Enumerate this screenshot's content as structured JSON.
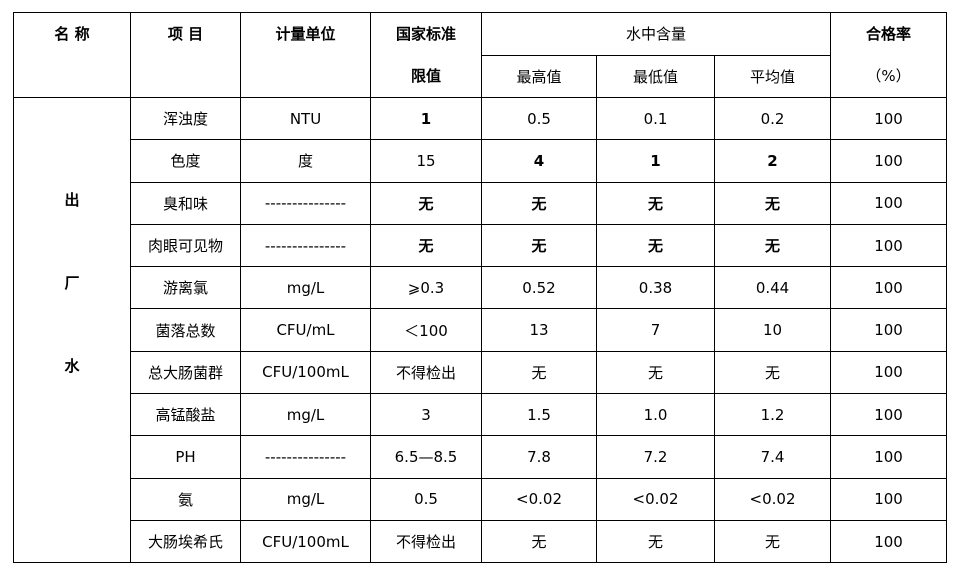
{
  "header": {
    "name": "名 称",
    "item": "项 目",
    "unit": "计量单位",
    "standard": [
      "国家标准",
      "限值"
    ],
    "content": "水中含量",
    "max": "最高值",
    "min": "最低值",
    "avg": "平均值",
    "pass_rate": [
      "合格率",
      "（%）"
    ]
  },
  "table": {
    "group": [
      "出",
      "厂",
      "水"
    ],
    "rows": [
      [
        "浑浊度",
        "NTU",
        "1",
        "0.5",
        "0.1",
        "0.2",
        "100"
      ],
      [
        "色度",
        "度",
        "15",
        "4",
        "1",
        "2",
        "100"
      ],
      [
        "臭和味",
        "---------------",
        "无",
        "无",
        "无",
        "无",
        "100"
      ],
      [
        "肉眼可见物",
        "---------------",
        "无",
        "无",
        "无",
        "无",
        "100"
      ],
      [
        "游离氯",
        "mg/L",
        "⩾0.3",
        "0.52",
        "0.38",
        "0.44",
        "100"
      ],
      [
        "菌落总数",
        "CFU/mL",
        "＜100",
        "13",
        "7",
        "10",
        "100"
      ],
      [
        "总大肠菌群",
        "CFU/100mL",
        "不得检出",
        "无",
        "无",
        "无",
        "100"
      ],
      [
        "高锰酸盐",
        "mg/L",
        "3",
        "1.5",
        "1.0",
        "1.2",
        "100"
      ],
      [
        "PH",
        "---------------",
        "6.5—8.5",
        "7.8",
        "7.2",
        "7.4",
        "100"
      ],
      [
        "氨",
        "mg/L",
        "0.5",
        "<0.02",
        "<0.02",
        "<0.02",
        "100"
      ],
      [
        "大肠埃希氏",
        "CFU/100mL",
        "不得检出",
        "无",
        "无",
        "无",
        "100"
      ]
    ]
  }
}
